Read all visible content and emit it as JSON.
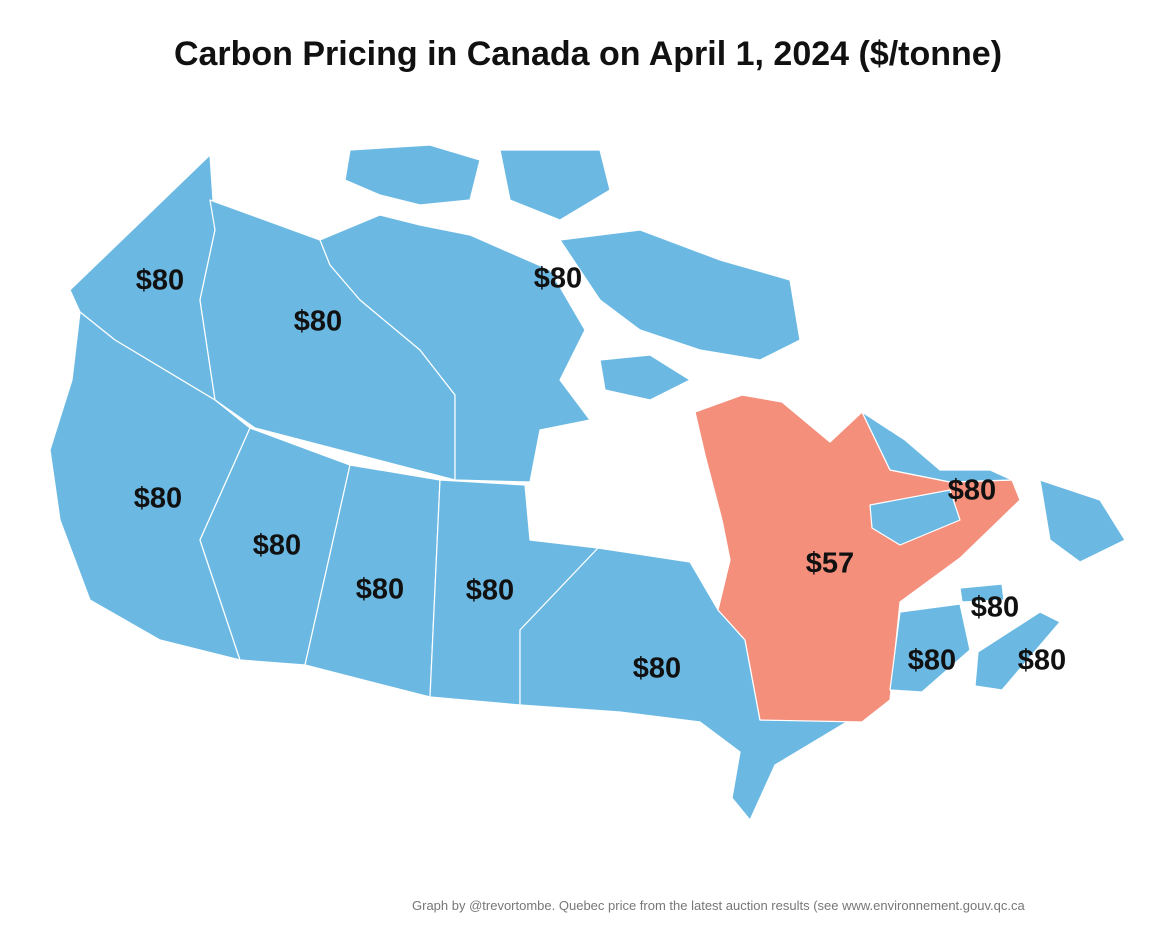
{
  "title": "Carbon Pricing in Canada on April 1, 2024 ($/tonne)",
  "regions": [
    {
      "label": "$80",
      "color": "#6bb9e3"
    },
    {
      "label": "$80",
      "color": "#6bb9e3"
    },
    {
      "label": "$80",
      "color": "#6bb9e3"
    },
    {
      "label": "$80",
      "color": "#6bb9e3"
    },
    {
      "label": "$80",
      "color": "#6bb9e3"
    },
    {
      "label": "$80",
      "color": "#6bb9e3"
    },
    {
      "label": "$80",
      "color": "#6bb9e3"
    },
    {
      "label": "$80",
      "color": "#6bb9e3"
    },
    {
      "label": "$57",
      "color": "#f48f7c"
    },
    {
      "label": "$80",
      "color": "#6bb9e3"
    },
    {
      "label": "$80",
      "color": "#6bb9e3"
    },
    {
      "label": "$80",
      "color": "#6bb9e3"
    },
    {
      "label": "$80",
      "color": "#6bb9e3"
    }
  ],
  "footer": "Graph by @trevortombe. Quebec price from the latest auction results (see www.environnement.gouv.qc.ca"
}
